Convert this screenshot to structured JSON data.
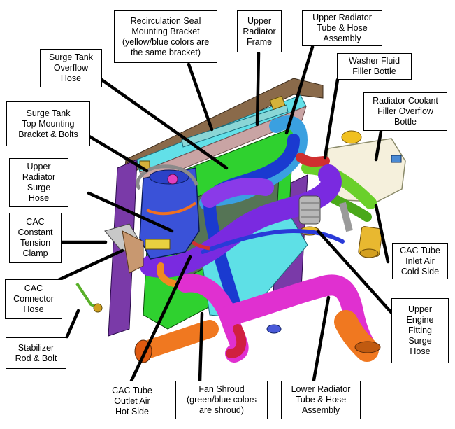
{
  "labels": {
    "recirc_seal": "Recirculation Seal\nMounting Bracket\n(yellow/blue colors are\nthe same bracket)",
    "upper_rad_frame": "Upper\nRadiator\nFrame",
    "upper_rad_tube": "Upper Radiator\nTube & Hose\nAssembly",
    "washer_fluid": "Washer Fluid\nFiller Bottle",
    "surge_overflow": "Surge Tank\nOverflow\nHose",
    "rad_coolant_overflow": "Radiator Coolant\nFiller Overflow\nBottle",
    "surge_top_bracket": "Surge Tank\nTop Mounting\nBracket & Bolts",
    "upper_rad_surge": "Upper\nRadiator\nSurge\nHose",
    "cac_clamp": "CAC\nConstant\nTension\nClamp",
    "cac_inlet": "CAC Tube\nInlet Air\nCold Side",
    "cac_connector": "CAC\nConnector\nHose",
    "upper_engine_fitting": "Upper\nEngine\nFitting\nSurge\nHose",
    "stabilizer": "Stabilizer\nRod & Bolt",
    "cac_outlet": "CAC Tube\nOutlet Air\nHot Side",
    "fan_shroud": "Fan Shroud\n(green/blue colors\nare shroud)",
    "lower_rad_tube": "Lower Radiator\nTube & Hose\nAssembly"
  }
}
